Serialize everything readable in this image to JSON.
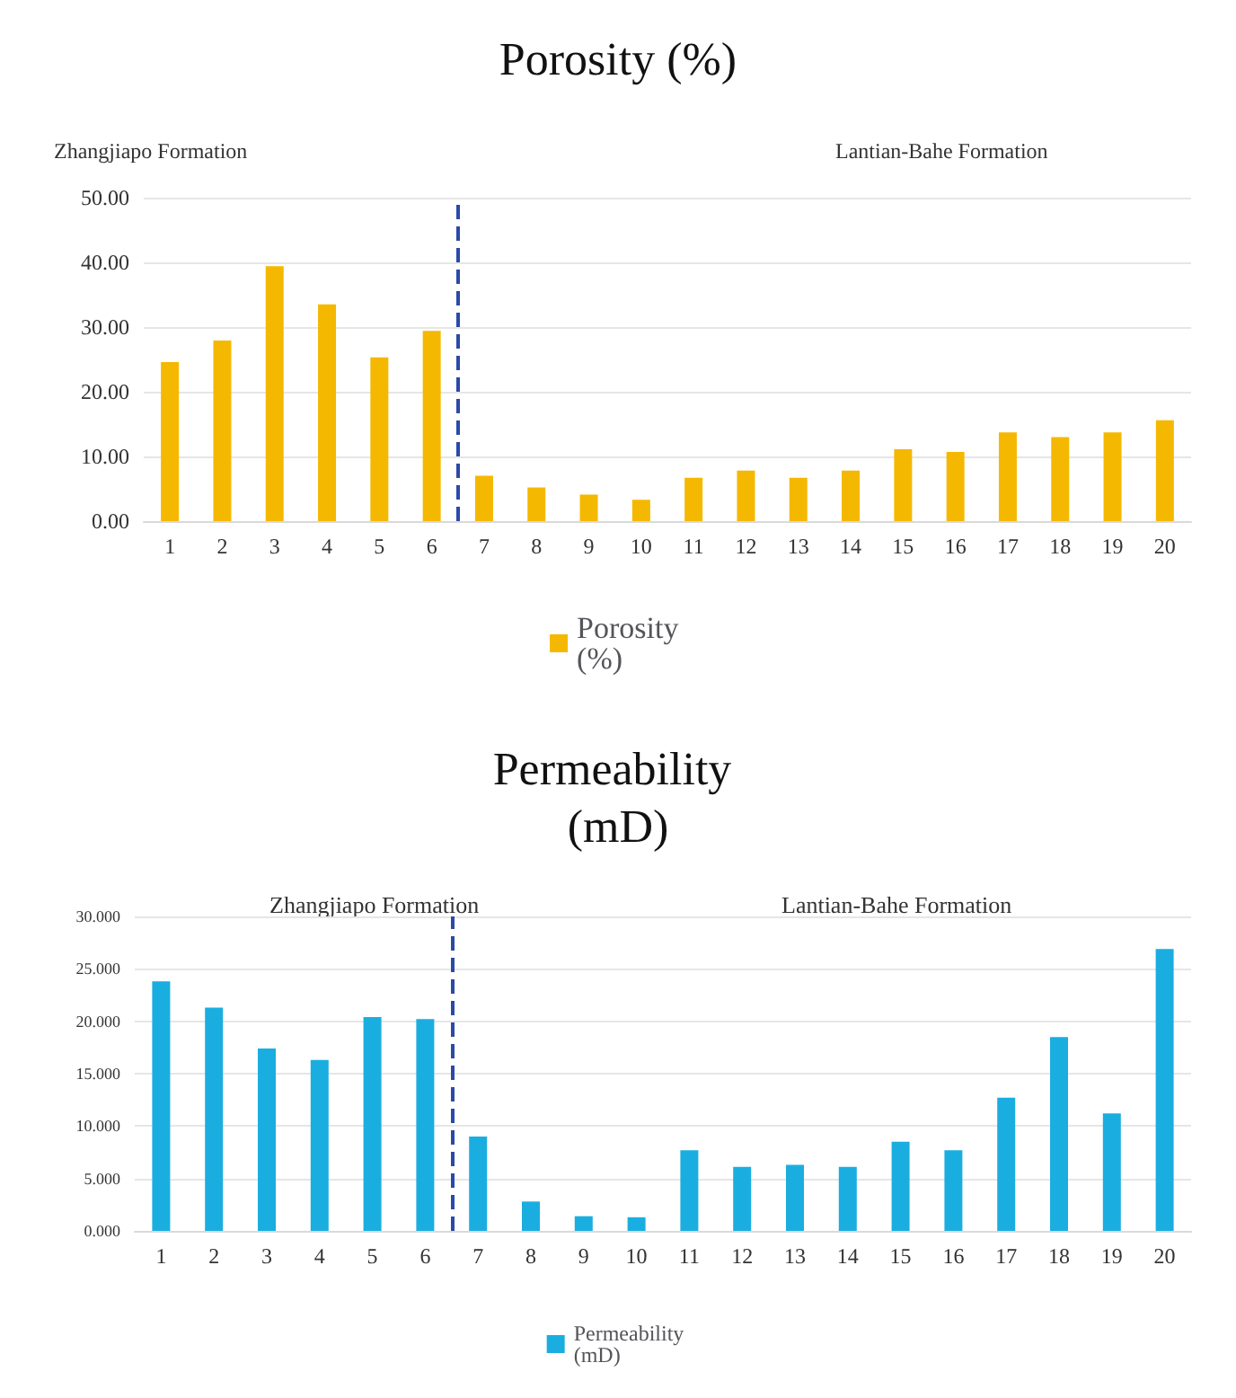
{
  "chart_data": [
    {
      "type": "bar",
      "title": "Porosity (%)",
      "annotations": [
        "Zhangjiapo Formation",
        "Lantian-Bahe Formation"
      ],
      "x": [
        1,
        2,
        3,
        4,
        5,
        6,
        7,
        8,
        9,
        10,
        11,
        12,
        13,
        14,
        15,
        16,
        17,
        18,
        19,
        20
      ],
      "series": [
        {
          "name": "Porosity (%)",
          "color": "#f5b800",
          "values": [
            24.6,
            27.9,
            39.4,
            33.5,
            25.3,
            29.4,
            7.0,
            5.2,
            4.1,
            3.3,
            6.7,
            7.8,
            6.7,
            7.8,
            11.1,
            10.7,
            13.7,
            13.0,
            13.7,
            15.6
          ]
        }
      ],
      "xlim": [
        0.5,
        20.5
      ],
      "xticks": [
        1,
        2,
        3,
        4,
        5,
        6,
        7,
        8,
        9,
        10,
        11,
        12,
        13,
        14,
        15,
        16,
        17,
        18,
        19,
        20
      ],
      "ylim": [
        0,
        50
      ],
      "yticks": [
        {
          "value": 0,
          "label": "0.00"
        },
        {
          "value": 10,
          "label": "10.00"
        },
        {
          "value": 20,
          "label": "20.00"
        },
        {
          "value": 30,
          "label": "30.00"
        },
        {
          "value": 40,
          "label": "40.00"
        },
        {
          "value": 50,
          "label": "50.00"
        }
      ],
      "ref_lines": [
        {
          "axis": "x",
          "value": 6.5,
          "color": "#2a4aa8",
          "line_style": "dashed"
        }
      ],
      "grid": "y",
      "legend": "bottom"
    },
    {
      "type": "bar",
      "title": "Permeability (mD)",
      "annotations": [
        "Zhangjiapo Formation",
        "Lantian-Bahe Formation"
      ],
      "x": [
        1,
        2,
        3,
        4,
        5,
        6,
        7,
        8,
        9,
        10,
        11,
        12,
        13,
        14,
        15,
        16,
        17,
        18,
        19,
        20
      ],
      "series": [
        {
          "name": "Permeability (mD)",
          "color": "#1aaee0",
          "values": [
            23.8,
            21.3,
            17.4,
            16.3,
            20.4,
            20.2,
            9.0,
            2.8,
            1.4,
            1.3,
            7.7,
            6.1,
            6.3,
            6.1,
            8.5,
            7.7,
            12.7,
            18.5,
            11.2,
            26.9
          ]
        }
      ],
      "xlim": [
        0.5,
        20.5
      ],
      "xticks": [
        1,
        2,
        3,
        4,
        5,
        6,
        7,
        8,
        9,
        10,
        11,
        12,
        13,
        14,
        15,
        16,
        17,
        18,
        19,
        20
      ],
      "ylim": [
        0,
        30
      ],
      "yticks": [
        {
          "value": 0,
          "label": "0.000"
        },
        {
          "value": 5,
          "label": "5.000"
        },
        {
          "value": 10,
          "label": "10.000"
        },
        {
          "value": 15,
          "label": "15.000"
        },
        {
          "value": 20,
          "label": "20.000"
        },
        {
          "value": 25,
          "label": "25.000"
        },
        {
          "value": 30,
          "label": "30.000"
        }
      ],
      "ref_lines": [
        {
          "axis": "x",
          "value": 6.5,
          "color": "#2a4aa8",
          "line_style": "dashed"
        }
      ],
      "grid": "y",
      "legend": "bottom"
    }
  ]
}
